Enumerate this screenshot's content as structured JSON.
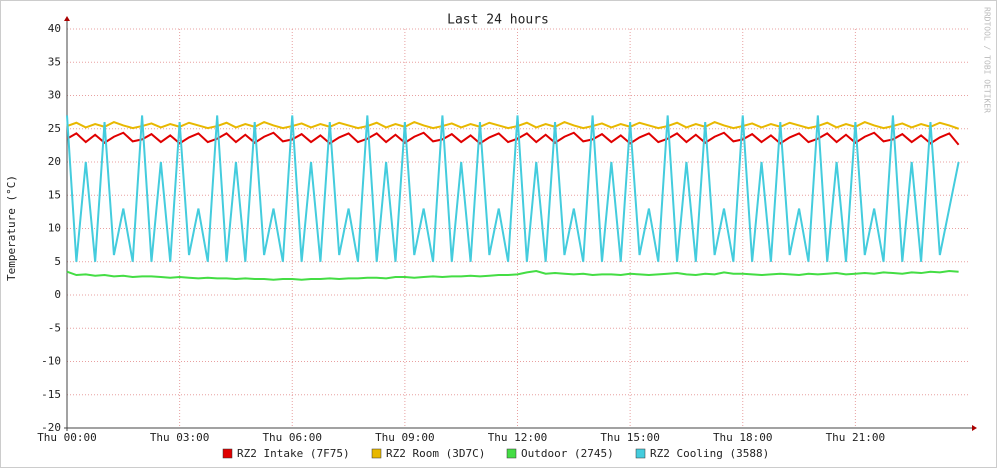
{
  "chart_data": {
    "type": "line",
    "title": "Last 24 hours",
    "y_label": "Temperature (°C)",
    "watermark": "RRDTOOL / TOBI OETIKER",
    "grid": true,
    "xlim": [
      0,
      24
    ],
    "xticks": [
      {
        "value": 0,
        "label": "Thu 00:00"
      },
      {
        "value": 3,
        "label": "Thu 03:00"
      },
      {
        "value": 6,
        "label": "Thu 06:00"
      },
      {
        "value": 9,
        "label": "Thu 09:00"
      },
      {
        "value": 12,
        "label": "Thu 12:00"
      },
      {
        "value": 15,
        "label": "Thu 15:00"
      },
      {
        "value": 18,
        "label": "Thu 18:00"
      },
      {
        "value": 21,
        "label": "Thu 21:00"
      }
    ],
    "ylim": [
      -20,
      40
    ],
    "yticks": [
      -20,
      -15,
      -10,
      -5,
      0,
      5,
      10,
      15,
      20,
      25,
      30,
      35,
      40
    ],
    "x": [
      0,
      0.25,
      0.5,
      0.75,
      1,
      1.25,
      1.5,
      1.75,
      2,
      2.25,
      2.5,
      2.75,
      3,
      3.25,
      3.5,
      3.75,
      4,
      4.25,
      4.5,
      4.75,
      5,
      5.25,
      5.5,
      5.75,
      6,
      6.25,
      6.5,
      6.75,
      7,
      7.25,
      7.5,
      7.75,
      8,
      8.25,
      8.5,
      8.75,
      9,
      9.25,
      9.5,
      9.75,
      10,
      10.25,
      10.5,
      10.75,
      11,
      11.25,
      11.5,
      11.75,
      12,
      12.25,
      12.5,
      12.75,
      13,
      13.25,
      13.5,
      13.75,
      14,
      14.25,
      14.5,
      14.75,
      15,
      15.25,
      15.5,
      15.75,
      16,
      16.25,
      16.5,
      16.75,
      17,
      17.25,
      17.5,
      17.75,
      18,
      18.25,
      18.5,
      18.75,
      19,
      19.25,
      19.5,
      19.75,
      20,
      20.25,
      20.5,
      20.75,
      21,
      21.25,
      21.5,
      21.75,
      22,
      22.25,
      22.5,
      22.75,
      23,
      23.25,
      23.5,
      23.75
    ],
    "series": [
      {
        "name": "RZ2 Intake (7F75)",
        "color": "#e00000",
        "values": [
          23.5,
          24.3,
          23.0,
          24.1,
          22.9,
          23.8,
          24.4,
          23.1,
          23.4,
          24.2,
          23.0,
          24.0,
          22.8,
          23.7,
          24.3,
          23.0,
          23.5,
          24.3,
          23.0,
          24.1,
          22.9,
          23.8,
          24.4,
          23.1,
          23.4,
          24.2,
          23.0,
          24.0,
          22.8,
          23.7,
          24.3,
          23.0,
          23.5,
          24.3,
          23.0,
          24.1,
          22.9,
          23.8,
          24.4,
          23.1,
          23.4,
          24.2,
          23.0,
          24.0,
          22.8,
          23.7,
          24.3,
          23.0,
          23.5,
          24.3,
          23.0,
          24.1,
          22.9,
          23.8,
          24.4,
          23.1,
          23.4,
          24.2,
          23.0,
          24.0,
          22.8,
          23.7,
          24.3,
          23.0,
          23.5,
          24.3,
          23.0,
          24.1,
          22.9,
          23.8,
          24.4,
          23.1,
          23.4,
          24.2,
          23.0,
          24.0,
          22.8,
          23.7,
          24.3,
          23.0,
          23.5,
          24.3,
          23.0,
          24.1,
          22.9,
          23.8,
          24.4,
          23.1,
          23.4,
          24.2,
          23.0,
          24.0,
          22.8,
          23.7,
          24.3,
          22.6
        ]
      },
      {
        "name": "RZ2 Room (3D7C)",
        "color": "#e8b800",
        "values": [
          25.4,
          25.9,
          25.2,
          25.7,
          25.3,
          26.0,
          25.5,
          25.1,
          25.4,
          25.8,
          25.2,
          25.7,
          25.3,
          25.9,
          25.5,
          25.1,
          25.4,
          25.9,
          25.2,
          25.7,
          25.3,
          26.0,
          25.5,
          25.1,
          25.4,
          25.8,
          25.2,
          25.7,
          25.3,
          25.9,
          25.5,
          25.1,
          25.4,
          25.9,
          25.2,
          25.7,
          25.3,
          26.0,
          25.5,
          25.1,
          25.4,
          25.8,
          25.2,
          25.7,
          25.3,
          25.9,
          25.5,
          25.1,
          25.4,
          25.9,
          25.2,
          25.7,
          25.3,
          26.0,
          25.5,
          25.1,
          25.4,
          25.8,
          25.2,
          25.7,
          25.3,
          25.9,
          25.5,
          25.1,
          25.4,
          25.9,
          25.2,
          25.7,
          25.3,
          26.0,
          25.5,
          25.1,
          25.4,
          25.8,
          25.2,
          25.7,
          25.3,
          25.9,
          25.5,
          25.1,
          25.4,
          25.9,
          25.2,
          25.7,
          25.3,
          26.0,
          25.5,
          25.1,
          25.4,
          25.8,
          25.2,
          25.7,
          25.3,
          25.9,
          25.5,
          25.0
        ]
      },
      {
        "name": "Outdoor (2745)",
        "color": "#44dd44",
        "values": [
          3.5,
          3.0,
          3.1,
          2.9,
          3.0,
          2.8,
          2.9,
          2.7,
          2.8,
          2.8,
          2.7,
          2.6,
          2.7,
          2.6,
          2.5,
          2.6,
          2.5,
          2.5,
          2.4,
          2.5,
          2.4,
          2.4,
          2.3,
          2.4,
          2.4,
          2.3,
          2.4,
          2.4,
          2.5,
          2.4,
          2.5,
          2.5,
          2.6,
          2.6,
          2.5,
          2.7,
          2.7,
          2.6,
          2.7,
          2.8,
          2.7,
          2.8,
          2.8,
          2.9,
          2.8,
          2.9,
          3.0,
          3.0,
          3.1,
          3.4,
          3.6,
          3.2,
          3.3,
          3.2,
          3.1,
          3.2,
          3.0,
          3.1,
          3.1,
          3.0,
          3.2,
          3.1,
          3.0,
          3.1,
          3.2,
          3.3,
          3.1,
          3.0,
          3.2,
          3.1,
          3.4,
          3.2,
          3.2,
          3.1,
          3.0,
          3.1,
          3.2,
          3.1,
          3.0,
          3.2,
          3.1,
          3.2,
          3.3,
          3.1,
          3.2,
          3.3,
          3.2,
          3.4,
          3.3,
          3.2,
          3.4,
          3.3,
          3.5,
          3.4,
          3.6,
          3.5
        ]
      },
      {
        "name": "RZ2 Cooling (3588)",
        "color": "#44ccdd",
        "values": [
          27,
          5,
          20,
          5,
          26,
          6,
          13,
          5,
          27,
          5,
          20,
          5,
          26,
          6,
          13,
          5,
          27,
          5,
          20,
          5,
          26,
          6,
          13,
          5,
          27,
          5,
          20,
          5,
          26,
          6,
          13,
          5,
          27,
          5,
          20,
          5,
          26,
          6,
          13,
          5,
          27,
          5,
          20,
          5,
          26,
          6,
          13,
          5,
          27,
          5,
          20,
          5,
          26,
          6,
          13,
          5,
          27,
          5,
          20,
          5,
          26,
          6,
          13,
          5,
          27,
          5,
          20,
          5,
          26,
          6,
          13,
          5,
          27,
          5,
          20,
          5,
          26,
          6,
          13,
          5,
          27,
          5,
          20,
          5,
          26,
          6,
          13,
          5,
          27,
          5,
          20,
          5,
          26,
          6,
          13,
          20
        ]
      }
    ]
  }
}
